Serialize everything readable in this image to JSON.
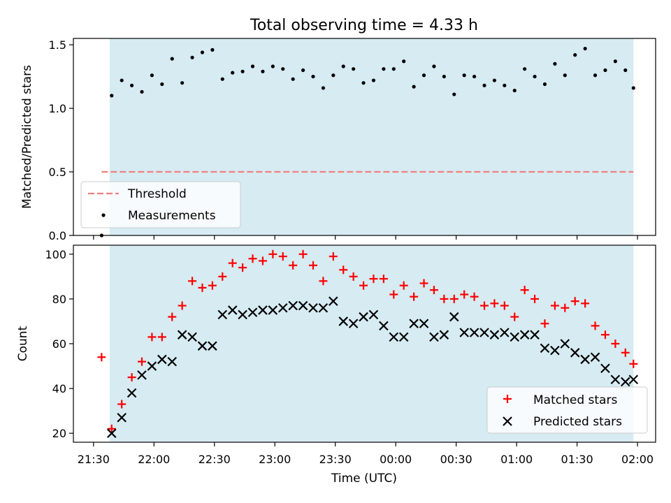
{
  "chart_data": [
    {
      "type": "scatter",
      "title": "Total observing time = 4.33 h",
      "xlabel": "",
      "ylabel": "Matched/Predicted stars",
      "ylim": [
        0,
        1.55
      ],
      "yticks": [
        "0.0",
        "0.5",
        "1.0",
        "1.5"
      ],
      "observing_window": {
        "start_min": 8,
        "end_min": 268
      },
      "threshold": {
        "name": "Threshold",
        "value": 0.5,
        "color": "#f08080",
        "style": "dashed",
        "x_start_min": 4
      },
      "series": [
        {
          "name": "Measurements",
          "color": "#000000",
          "marker": "dot",
          "x": [
            4,
            9,
            14,
            19,
            24,
            29,
            34,
            39,
            44,
            49,
            54,
            59,
            64,
            69,
            74,
            79,
            84,
            89,
            94,
            99,
            104,
            109,
            114,
            119,
            124,
            129,
            134,
            139,
            144,
            149,
            154,
            159,
            164,
            169,
            174,
            179,
            184,
            189,
            194,
            199,
            204,
            209,
            214,
            219,
            224,
            229,
            234,
            239,
            244,
            249,
            254,
            259,
            264,
            268
          ],
          "y": [
            0.0,
            1.1,
            1.22,
            1.18,
            1.13,
            1.26,
            1.19,
            1.39,
            1.2,
            1.4,
            1.44,
            1.46,
            1.23,
            1.28,
            1.29,
            1.33,
            1.29,
            1.33,
            1.31,
            1.23,
            1.3,
            1.25,
            1.16,
            1.26,
            1.33,
            1.31,
            1.2,
            1.22,
            1.31,
            1.31,
            1.37,
            1.17,
            1.26,
            1.33,
            1.25,
            1.11,
            1.26,
            1.25,
            1.18,
            1.22,
            1.18,
            1.14,
            1.31,
            1.25,
            1.19,
            1.35,
            1.26,
            1.42,
            1.47,
            1.26,
            1.3,
            1.37,
            1.3,
            1.16
          ]
        }
      ],
      "legend": "lower-left"
    },
    {
      "type": "scatter",
      "title": "",
      "xlabel": "Time (UTC)",
      "ylabel": "Count",
      "ylim": [
        16,
        104
      ],
      "yticks": [
        "20",
        "40",
        "60",
        "80",
        "100"
      ],
      "xtick_labels": [
        "21:30",
        "22:00",
        "22:30",
        "23:00",
        "23:30",
        "00:00",
        "00:30",
        "01:00",
        "01:30",
        "02:00"
      ],
      "xlim_min": [
        -10,
        279
      ],
      "series": [
        {
          "name": "Matched stars",
          "color": "#ff0000",
          "marker": "plus",
          "x": [
            4,
            9,
            14,
            19,
            24,
            29,
            34,
            39,
            44,
            49,
            54,
            59,
            64,
            69,
            74,
            79,
            84,
            89,
            94,
            99,
            104,
            109,
            114,
            119,
            124,
            129,
            134,
            139,
            144,
            149,
            154,
            159,
            164,
            169,
            174,
            179,
            184,
            189,
            194,
            199,
            204,
            209,
            214,
            219,
            224,
            229,
            234,
            239,
            244,
            249,
            254,
            259,
            264,
            268
          ],
          "y": [
            54,
            22,
            33,
            45,
            52,
            63,
            63,
            72,
            77,
            88,
            85,
            86,
            90,
            96,
            94,
            98,
            97,
            100,
            99,
            95,
            100,
            95,
            88,
            99,
            93,
            90,
            86,
            89,
            89,
            82,
            86,
            81,
            87,
            84,
            80,
            80,
            82,
            81,
            77,
            78,
            77,
            72,
            84,
            80,
            69,
            77,
            76,
            79,
            78,
            68,
            64,
            60,
            56,
            51
          ]
        },
        {
          "name": "Predicted stars",
          "color": "#000000",
          "marker": "x",
          "x": [
            9,
            14,
            19,
            24,
            29,
            34,
            39,
            44,
            49,
            54,
            59,
            64,
            69,
            74,
            79,
            84,
            89,
            94,
            99,
            104,
            109,
            114,
            119,
            124,
            129,
            134,
            139,
            144,
            149,
            154,
            159,
            164,
            169,
            174,
            179,
            184,
            189,
            194,
            199,
            204,
            209,
            214,
            219,
            224,
            229,
            234,
            239,
            244,
            249,
            254,
            259,
            264,
            268
          ],
          "y": [
            20,
            27,
            38,
            46,
            50,
            53,
            52,
            64,
            63,
            59,
            59,
            73,
            75,
            73,
            74,
            75,
            75,
            76,
            77,
            77,
            76,
            76,
            79,
            70,
            69,
            72,
            73,
            68,
            63,
            63,
            69,
            69,
            63,
            64,
            72,
            65,
            65,
            65,
            64,
            65,
            63,
            64,
            64,
            58,
            57,
            60,
            56,
            53,
            54,
            49,
            44,
            43,
            44
          ]
        }
      ],
      "legend": "lower-right"
    }
  ]
}
